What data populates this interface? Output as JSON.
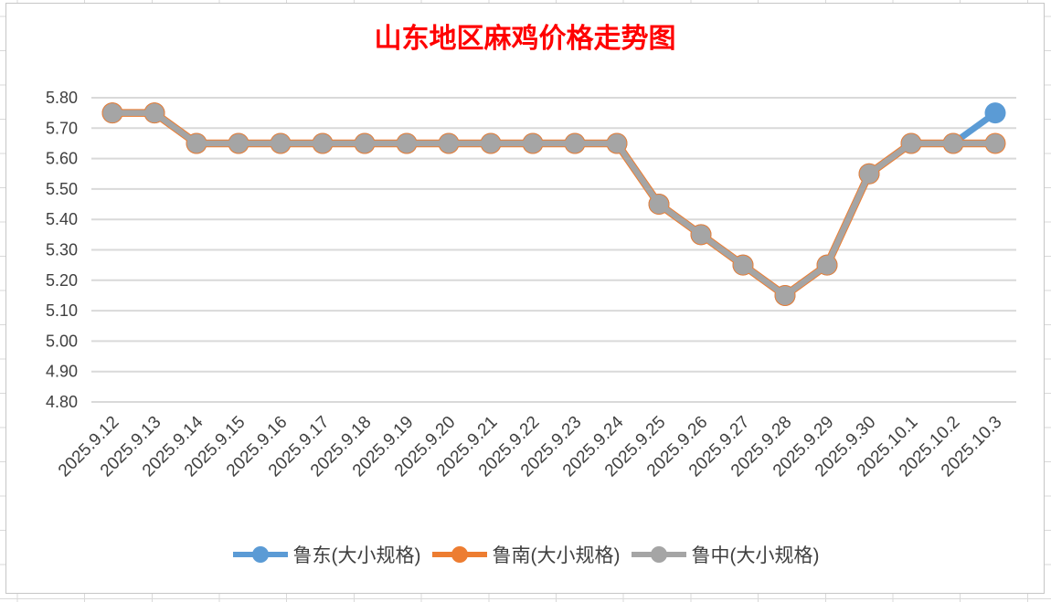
{
  "chart_data": {
    "type": "line",
    "title": "山东地区麻鸡价格走势图",
    "title_color": "#ff0000",
    "categories": [
      "2025.9.12",
      "2025.9.13",
      "2025.9.14",
      "2025.9.15",
      "2025.9.16",
      "2025.9.17",
      "2025.9.18",
      "2025.9.19",
      "2025.9.20",
      "2025.9.21",
      "2025.9.22",
      "2025.9.23",
      "2025.9.24",
      "2025.9.25",
      "2025.9.26",
      "2025.9.27",
      "2025.9.28",
      "2025.9.29",
      "2025.9.30",
      "2025.10.1",
      "2025.10.2",
      "2025.10.3"
    ],
    "series": [
      {
        "name": "鲁东(大小规格)",
        "color": "#5B9BD5",
        "line_width": 7,
        "marker_radius": 11.5,
        "values": [
          5.75,
          5.75,
          5.65,
          5.65,
          5.65,
          5.65,
          5.65,
          5.65,
          5.65,
          5.65,
          5.65,
          5.65,
          5.65,
          5.45,
          5.35,
          5.25,
          5.15,
          5.25,
          5.55,
          5.65,
          5.65,
          5.75
        ]
      },
      {
        "name": "鲁南(大小规格)",
        "color": "#ED7D31",
        "line_width": 8.5,
        "marker_radius": 11.5,
        "values": [
          5.75,
          5.75,
          5.65,
          5.65,
          5.65,
          5.65,
          5.65,
          5.65,
          5.65,
          5.65,
          5.65,
          5.65,
          5.65,
          5.45,
          5.35,
          5.25,
          5.15,
          5.25,
          5.55,
          5.65,
          5.65,
          5.65
        ]
      },
      {
        "name": "鲁中(大小规格)",
        "color": "#A5A5A5",
        "line_width": 6.5,
        "marker_radius": 10.5,
        "values": [
          5.75,
          5.75,
          5.65,
          5.65,
          5.65,
          5.65,
          5.65,
          5.65,
          5.65,
          5.65,
          5.65,
          5.65,
          5.65,
          5.45,
          5.35,
          5.25,
          5.15,
          5.25,
          5.55,
          5.65,
          5.65,
          5.65
        ]
      }
    ],
    "xlabel": "",
    "ylabel": "",
    "ylim": [
      4.8,
      5.8
    ],
    "ytick_step": 0.1,
    "ytick_decimals": 2,
    "grid": true,
    "gridline_color": "#d9d9d9",
    "axis_label_color": "#404040",
    "legend_position": "bottom",
    "x_label_rotation_deg": -45
  }
}
